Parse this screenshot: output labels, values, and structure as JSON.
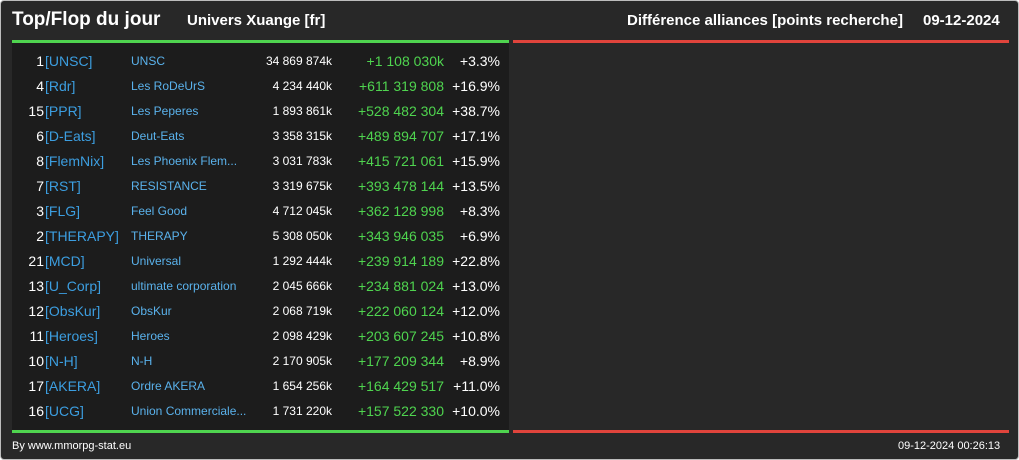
{
  "header": {
    "title": "Top/Flop du jour",
    "universe": "Univers Xuange [fr]",
    "diff_title": "Différence alliances [points recherche]",
    "date": "09-12-2024"
  },
  "colors": {
    "background": "#282828",
    "panel_left": "#1c1c1c",
    "top_accent": "#4fd44f",
    "flop_accent": "#e0443c",
    "tag_color": "#3c9ee0",
    "name_color": "#5ab2ec",
    "delta_color": "#4fd44f"
  },
  "rows": [
    {
      "rank": "1",
      "tag": "[UNSC]",
      "name": "UNSC",
      "points": "34 869 874k",
      "delta": "+1 108 030k",
      "pct": "+3.3%"
    },
    {
      "rank": "4",
      "tag": "[Rdr]",
      "name": "Les RoDeUrS",
      "points": "4 234 440k",
      "delta": "+611 319 808",
      "pct": "+16.9%"
    },
    {
      "rank": "15",
      "tag": "[PPR]",
      "name": "Les Peperes",
      "points": "1 893 861k",
      "delta": "+528 482 304",
      "pct": "+38.7%"
    },
    {
      "rank": "6",
      "tag": "[D-Eats]",
      "name": "Deut-Eats",
      "points": "3 358 315k",
      "delta": "+489 894 707",
      "pct": "+17.1%"
    },
    {
      "rank": "8",
      "tag": "[FlemNix]",
      "name": "Les Phoenix Flem...",
      "points": "3 031 783k",
      "delta": "+415 721 061",
      "pct": "+15.9%"
    },
    {
      "rank": "7",
      "tag": "[RST]",
      "name": "RESISTANCE",
      "points": "3 319 675k",
      "delta": "+393 478 144",
      "pct": "+13.5%"
    },
    {
      "rank": "3",
      "tag": "[FLG]",
      "name": "Feel Good",
      "points": "4 712 045k",
      "delta": "+362 128 998",
      "pct": "+8.3%"
    },
    {
      "rank": "2",
      "tag": "[THERAPY]",
      "name": "THERAPY",
      "points": "5 308 050k",
      "delta": "+343 946 035",
      "pct": "+6.9%"
    },
    {
      "rank": "21",
      "tag": "[MCD]",
      "name": "Universal",
      "points": "1 292 444k",
      "delta": "+239 914 189",
      "pct": "+22.8%"
    },
    {
      "rank": "13",
      "tag": "[U_Corp]",
      "name": "ultimate corporation",
      "points": "2 045 666k",
      "delta": "+234 881 024",
      "pct": "+13.0%"
    },
    {
      "rank": "12",
      "tag": "[ObsKur]",
      "name": "ObsKur",
      "points": "2 068 719k",
      "delta": "+222 060 124",
      "pct": "+12.0%"
    },
    {
      "rank": "11",
      "tag": "[Heroes]",
      "name": "Heroes",
      "points": "2 098 429k",
      "delta": "+203 607 245",
      "pct": "+10.8%"
    },
    {
      "rank": "10",
      "tag": "[N-H]",
      "name": "N-H",
      "points": "2 170 905k",
      "delta": "+177 209 344",
      "pct": "+8.9%"
    },
    {
      "rank": "17",
      "tag": "[AKERA]",
      "name": "Ordre AKERA",
      "points": "1 654 256k",
      "delta": "+164 429 517",
      "pct": "+11.0%"
    },
    {
      "rank": "16",
      "tag": "[UCG]",
      "name": "Union Commerciale...",
      "points": "1 731 220k",
      "delta": "+157 522 330",
      "pct": "+10.0%"
    }
  ],
  "footer": {
    "source": "By www.mmorpg-stat.eu",
    "timestamp": "09-12-2024 00:26:13"
  }
}
